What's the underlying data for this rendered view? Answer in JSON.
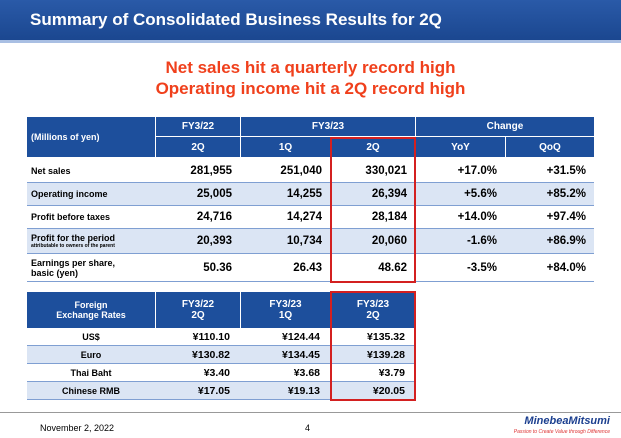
{
  "header": {
    "title": "Summary of Consolidated Business Results for 2Q"
  },
  "headline": [
    "Net sales hit a quarterly record high",
    "Operating income hit a 2Q record high"
  ],
  "results_table": {
    "label": "(Millions of yen)",
    "groups": [
      "FY3/22",
      "FY3/23",
      "Change"
    ],
    "columns": [
      "2Q",
      "1Q",
      "2Q",
      "YoY",
      "QoQ"
    ],
    "rows": [
      {
        "label": [
          "Net sales"
        ],
        "values": [
          "281,955",
          "251,040",
          "330,021",
          "+17.0%",
          "+31.5%"
        ]
      },
      {
        "label": [
          "Operating income"
        ],
        "values": [
          "25,005",
          "14,255",
          "26,394",
          "+5.6%",
          "+85.2%"
        ]
      },
      {
        "label": [
          "Profit before taxes"
        ],
        "values": [
          "24,716",
          "14,274",
          "28,184",
          "+14.0%",
          "+97.4%"
        ]
      },
      {
        "label": [
          "Profit for the period",
          "attributable to owners of the parent"
        ],
        "values": [
          "20,393",
          "10,734",
          "20,060",
          "-1.6%",
          "+86.9%"
        ]
      },
      {
        "label": [
          "Earnings per share,",
          "basic (yen)"
        ],
        "values": [
          "50.36",
          "26.43",
          "48.62",
          "-3.5%",
          "+84.0%"
        ]
      }
    ]
  },
  "fx_table": {
    "label": [
      "Foreign",
      "Exchange Rates"
    ],
    "columns": [
      [
        "FY3/22",
        "2Q"
      ],
      [
        "FY3/23",
        "1Q"
      ],
      [
        "FY3/23",
        "2Q"
      ]
    ],
    "rows": [
      {
        "label": "US$",
        "values": [
          "¥110.10",
          "¥124.44",
          "¥135.32"
        ]
      },
      {
        "label": "Euro",
        "values": [
          "¥130.82",
          "¥134.45",
          "¥139.28"
        ]
      },
      {
        "label": "Thai Baht",
        "values": [
          "¥3.40",
          "¥3.68",
          "¥3.79"
        ]
      },
      {
        "label": "Chinese RMB",
        "values": [
          "¥17.05",
          "¥19.13",
          "¥20.05"
        ]
      }
    ]
  },
  "footer": {
    "date": "November 2, 2022",
    "page": "4",
    "logo": "MinebeaMitsumi",
    "tagline": "Passion to Create Value through Difference"
  }
}
